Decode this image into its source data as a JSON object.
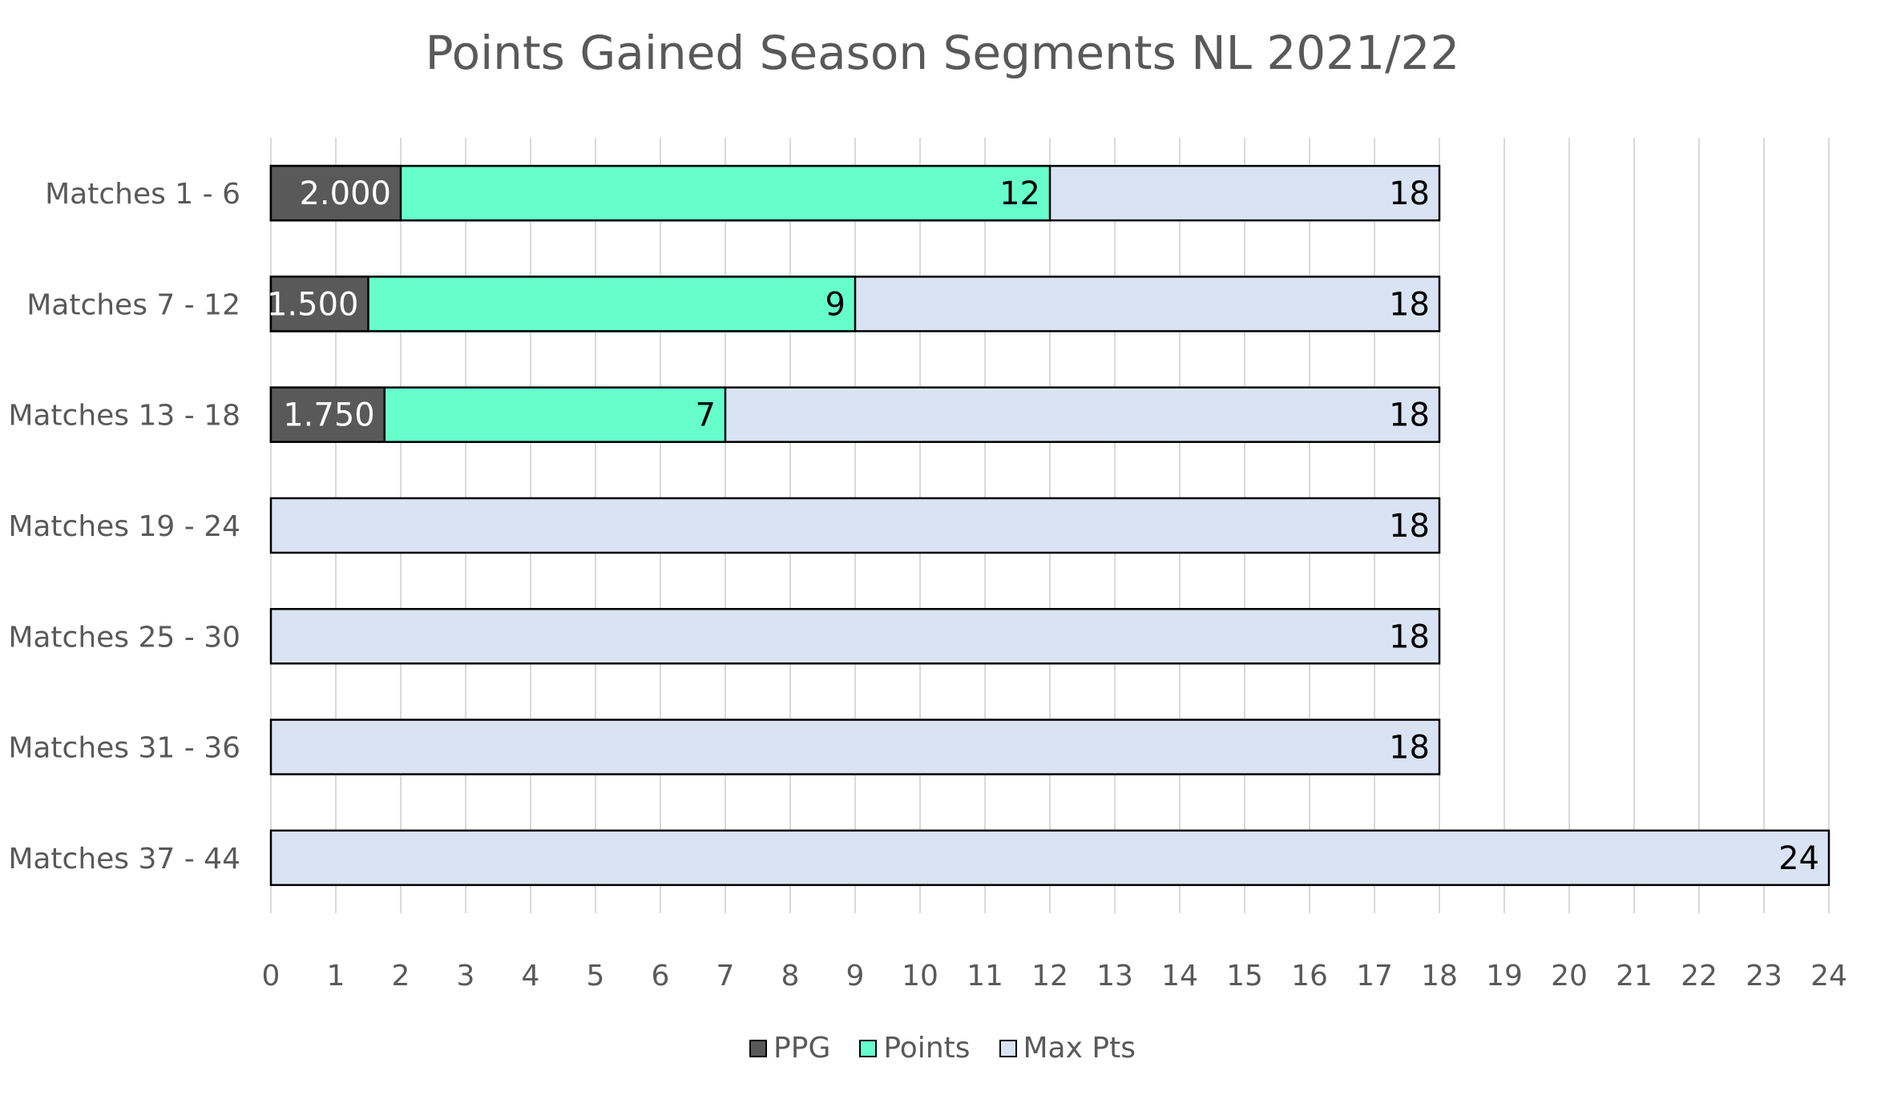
{
  "chart_data": {
    "type": "bar",
    "orientation": "horizontal",
    "title": "Points Gained Season Segments NL 2021/22",
    "xlabel": "",
    "ylabel": "",
    "xlim": [
      0,
      24
    ],
    "x_ticks": [
      "0",
      "1",
      "2",
      "3",
      "4",
      "5",
      "6",
      "7",
      "8",
      "9",
      "10",
      "11",
      "12",
      "13",
      "14",
      "15",
      "16",
      "17",
      "18",
      "19",
      "20",
      "21",
      "22",
      "23",
      "24"
    ],
    "grid": "vertical",
    "legend_position": "bottom",
    "categories": [
      "Matches 1 - 6",
      "Matches 7 - 12",
      "Matches 13 - 18",
      "Matches 19 - 24",
      "Matches 25 - 30",
      "Matches 31 - 36",
      "Matches 37 - 44"
    ],
    "series": [
      {
        "name": "PPG",
        "color": "#595959",
        "label_color": "#ffffff",
        "values": [
          2.0,
          1.5,
          1.75,
          null,
          null,
          null,
          null
        ],
        "labels": [
          "2.000",
          "1.500",
          "1.750",
          "",
          "",
          "",
          ""
        ]
      },
      {
        "name": "Points",
        "color": "#66ffcc",
        "label_color": "#000000",
        "values": [
          12,
          9,
          7,
          null,
          null,
          null,
          null
        ],
        "labels": [
          "12",
          "9",
          "7",
          "",
          "",
          "",
          ""
        ]
      },
      {
        "name": "Max Pts",
        "color": "#dae3f3",
        "label_color": "#000000",
        "values": [
          18,
          18,
          18,
          18,
          18,
          18,
          24
        ],
        "labels": [
          "18",
          "18",
          "18",
          "18",
          "18",
          "18",
          "24"
        ]
      }
    ]
  }
}
